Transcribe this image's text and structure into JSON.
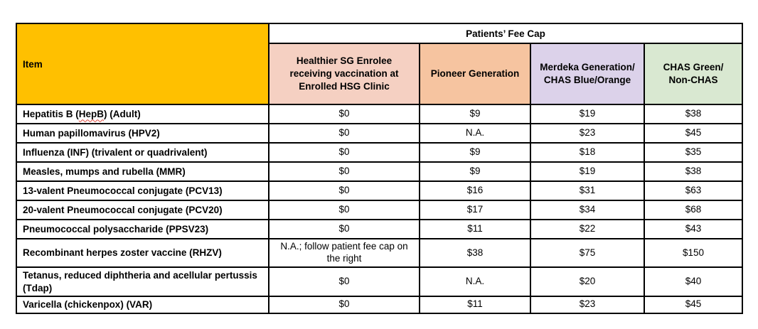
{
  "table": {
    "item_header": "Item",
    "fee_cap_header": "Patients’ Fee Cap",
    "item_header_bg": "#FFC000",
    "columns": [
      {
        "id": "hsg-enrolee",
        "label": "Healthier SG Enrolee\nreceiving vaccination at\nEnrolled HSG Clinic",
        "bg": "#F5D0C2"
      },
      {
        "id": "pioneer-generation",
        "label": "Pioneer Generation",
        "bg": "#F6C4A0"
      },
      {
        "id": "merdeka-generation-chas-blue-orange",
        "label": "Merdeka Generation/\nCHAS Blue/Orange",
        "bg": "#DCD2EA"
      },
      {
        "id": "chas-green-non-chas",
        "label": "CHAS Green/\nNon-CHAS",
        "bg": "#D9E8D1"
      }
    ],
    "rows": [
      {
        "item": "Hepatitis B (HepB) (Adult)",
        "squiggle": "HepB",
        "height": "h27",
        "values": [
          "$0",
          "$9",
          "$19",
          "$38"
        ]
      },
      {
        "item": "Human papillomavirus (HPV2)",
        "height": "h27",
        "values": [
          "$0",
          "N.A.",
          "$23",
          "$45"
        ]
      },
      {
        "item": "Influenza (INF) (trivalent or quadrivalent)",
        "height": "h27",
        "values": [
          "$0",
          "$9",
          "$18",
          "$35"
        ]
      },
      {
        "item": "Measles, mumps and rubella (MMR)",
        "height": "h27",
        "values": [
          "$0",
          "$9",
          "$19",
          "$38"
        ]
      },
      {
        "item": "13-valent Pneumococcal conjugate (PCV13)",
        "height": "h27",
        "values": [
          "$0",
          "$16",
          "$31",
          "$63"
        ]
      },
      {
        "item": "20-valent Pneumococcal conjugate (PCV20)",
        "height": "h27",
        "values": [
          "$0",
          "$17",
          "$34",
          "$68"
        ]
      },
      {
        "item": "Pneumococcal polysaccharide (PPSV23)",
        "height": "h27",
        "values": [
          "$0",
          "$11",
          "$22",
          "$43"
        ]
      },
      {
        "item": "Recombinant herpes zoster vaccine (RHZV)",
        "height": "h40",
        "values": [
          "N.A.; follow patient fee cap on the right",
          "$38",
          "$75",
          "$150"
        ]
      },
      {
        "item": "Tetanus, reduced diphtheria and acellular pertussis (Tdap)",
        "height": "h40",
        "values": [
          "$0",
          "N.A.",
          "$20",
          "$40"
        ]
      },
      {
        "item": "Varicella (chickenpox) (VAR)",
        "height": "h23",
        "values": [
          "$0",
          "$11",
          "$23",
          "$45"
        ]
      }
    ]
  }
}
